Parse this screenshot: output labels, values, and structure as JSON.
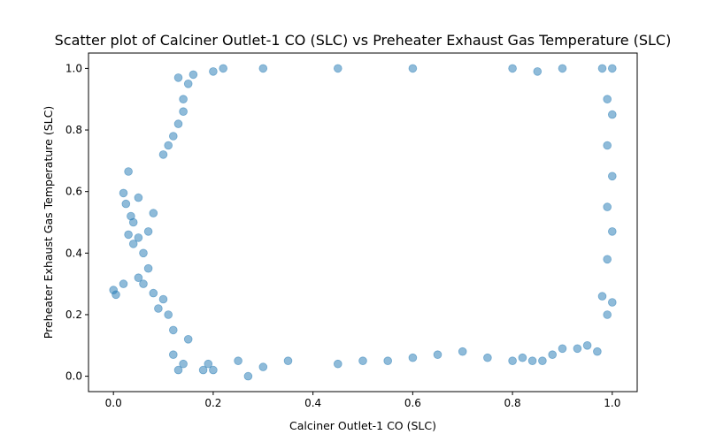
{
  "chart_data": {
    "type": "scatter",
    "title": "Scatter plot of Calciner Outlet-1 CO (SLC) vs Preheater Exhaust Gas Temperature (SLC)",
    "xlabel": "Calciner Outlet-1 CO (SLC)",
    "ylabel": "Preheater Exhaust Gas Temperature (SLC)",
    "xlim": [
      -0.05,
      1.05
    ],
    "ylim": [
      -0.05,
      1.05
    ],
    "x_ticks": [
      "0.0",
      "0.2",
      "0.4",
      "0.6",
      "0.8",
      "1.0"
    ],
    "y_ticks": [
      "0.0",
      "0.2",
      "0.4",
      "0.6",
      "0.8",
      "1.0"
    ],
    "grid": false,
    "marker_color": "#1f77b4",
    "marker_alpha": 0.5,
    "series": [
      {
        "points": [
          [
            0.0,
            0.28
          ],
          [
            0.005,
            0.265
          ],
          [
            0.02,
            0.3
          ],
          [
            0.02,
            0.595
          ],
          [
            0.03,
            0.665
          ],
          [
            0.025,
            0.56
          ],
          [
            0.035,
            0.52
          ],
          [
            0.04,
            0.5
          ],
          [
            0.05,
            0.58
          ],
          [
            0.05,
            0.45
          ],
          [
            0.06,
            0.4
          ],
          [
            0.07,
            0.35
          ],
          [
            0.05,
            0.32
          ],
          [
            0.06,
            0.3
          ],
          [
            0.08,
            0.27
          ],
          [
            0.09,
            0.22
          ],
          [
            0.03,
            0.46
          ],
          [
            0.04,
            0.43
          ],
          [
            0.07,
            0.47
          ],
          [
            0.08,
            0.53
          ],
          [
            0.1,
            0.72
          ],
          [
            0.11,
            0.75
          ],
          [
            0.12,
            0.78
          ],
          [
            0.13,
            0.82
          ],
          [
            0.14,
            0.9
          ],
          [
            0.15,
            0.95
          ],
          [
            0.16,
            0.98
          ],
          [
            0.13,
            0.97
          ],
          [
            0.14,
            0.86
          ],
          [
            0.12,
            0.07
          ],
          [
            0.13,
            0.02
          ],
          [
            0.14,
            0.04
          ],
          [
            0.15,
            0.12
          ],
          [
            0.12,
            0.15
          ],
          [
            0.11,
            0.2
          ],
          [
            0.1,
            0.25
          ],
          [
            0.18,
            0.02
          ],
          [
            0.2,
            0.02
          ],
          [
            0.19,
            0.04
          ],
          [
            0.27,
            0.0
          ],
          [
            0.25,
            0.05
          ],
          [
            0.3,
            0.03
          ],
          [
            0.35,
            0.05
          ],
          [
            0.45,
            0.04
          ],
          [
            0.5,
            0.05
          ],
          [
            0.55,
            0.05
          ],
          [
            0.6,
            0.06
          ],
          [
            0.65,
            0.07
          ],
          [
            0.7,
            0.08
          ],
          [
            0.75,
            0.06
          ],
          [
            0.8,
            0.05
          ],
          [
            0.82,
            0.06
          ],
          [
            0.84,
            0.05
          ],
          [
            0.86,
            0.05
          ],
          [
            0.88,
            0.07
          ],
          [
            0.9,
            0.09
          ],
          [
            0.93,
            0.09
          ],
          [
            0.95,
            0.1
          ],
          [
            0.97,
            0.08
          ],
          [
            0.99,
            0.2
          ],
          [
            1.0,
            0.24
          ],
          [
            0.98,
            0.26
          ],
          [
            0.99,
            0.38
          ],
          [
            1.0,
            0.47
          ],
          [
            0.99,
            0.55
          ],
          [
            1.0,
            0.65
          ],
          [
            0.99,
            0.75
          ],
          [
            1.0,
            0.85
          ],
          [
            0.99,
            0.9
          ],
          [
            1.0,
            1.0
          ],
          [
            0.98,
            1.0
          ],
          [
            0.9,
            1.0
          ],
          [
            0.85,
            0.99
          ],
          [
            0.8,
            1.0
          ],
          [
            0.6,
            1.0
          ],
          [
            0.45,
            1.0
          ],
          [
            0.3,
            1.0
          ],
          [
            0.22,
            1.0
          ],
          [
            0.2,
            0.99
          ]
        ]
      }
    ]
  }
}
